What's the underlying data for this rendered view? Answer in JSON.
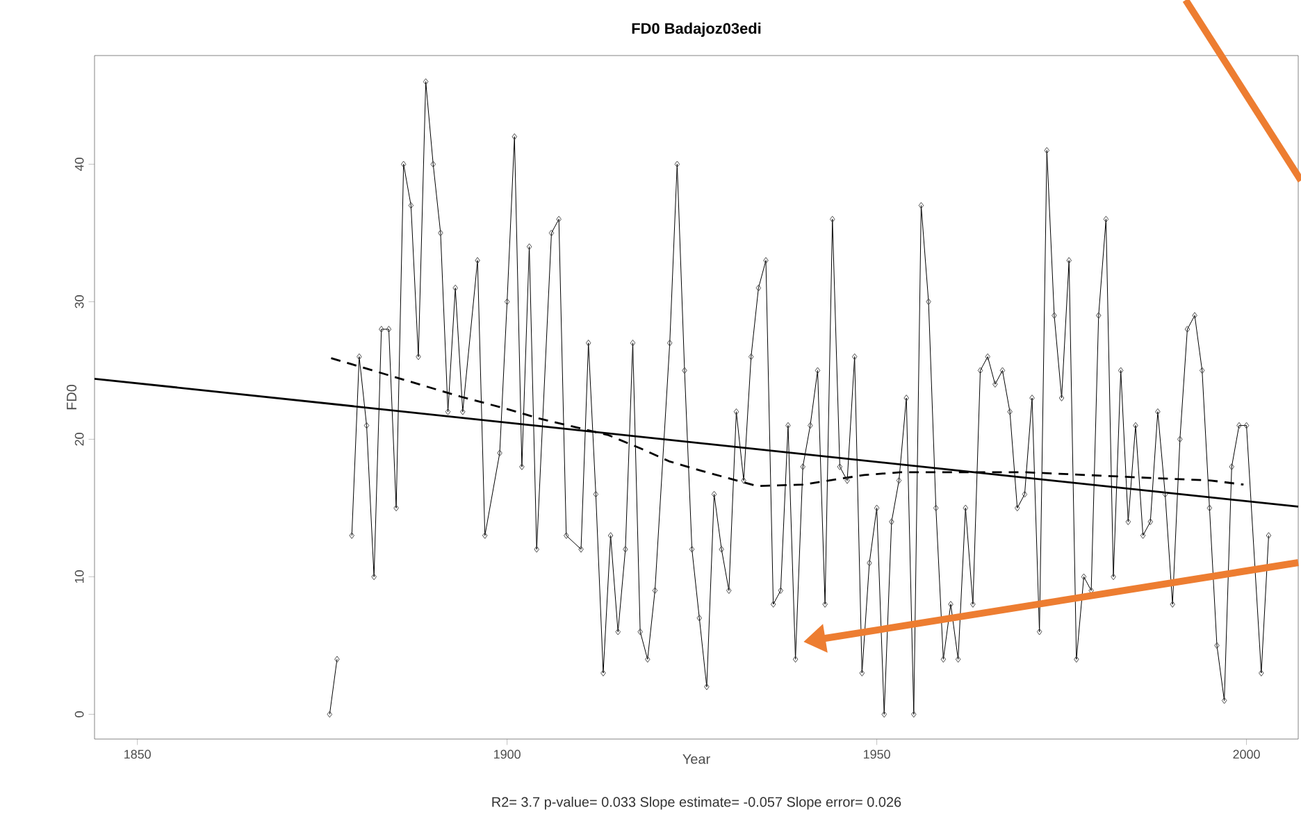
{
  "chart_data": {
    "type": "line",
    "title": "FD0   Badajoz03edi",
    "xlabel": "Year",
    "ylabel": "FD0",
    "annotations": [
      "R2= 3.7  p-value= 0.033  Slope estimate= -0.057  Slope error= 0.026"
    ],
    "xlim": [
      1844.2,
      2007.0
    ],
    "ylim": [
      -1.8,
      47.9
    ],
    "xticks": [
      1850,
      1900,
      1950,
      2000
    ],
    "yticks": [
      0,
      10,
      20,
      30,
      40
    ],
    "grid": false,
    "series": [
      {
        "color": "#000000",
        "marker": "diamond",
        "line_style": "solid",
        "x": [
          1876,
          1877,
          1878,
          1879,
          1880,
          1881,
          1882,
          1883,
          1884,
          1885,
          1886,
          1887,
          1888,
          1889,
          1890,
          1891,
          1892,
          1893,
          1894,
          1896,
          1897,
          1899,
          1900,
          1901,
          1902,
          1903,
          1904,
          1906,
          1907,
          1908,
          1910,
          1911,
          1912,
          1913,
          1914,
          1915,
          1916,
          1917,
          1918,
          1919,
          1920,
          1922,
          1923,
          1924,
          1925,
          1926,
          1927,
          1928,
          1929,
          1930,
          1931,
          1932,
          1933,
          1934,
          1935,
          1936,
          1937,
          1938,
          1939,
          1940,
          1941,
          1942,
          1943,
          1944,
          1945,
          1946,
          1947,
          1948,
          1949,
          1950,
          1951,
          1952,
          1953,
          1954,
          1955,
          1956,
          1957,
          1958,
          1959,
          1960,
          1961,
          1962,
          1963,
          1964,
          1965,
          1966,
          1967,
          1968,
          1969,
          1970,
          1971,
          1972,
          1973,
          1974,
          1975,
          1976,
          1977,
          1978,
          1979,
          1980,
          1981,
          1982,
          1983,
          1984,
          1985,
          1986,
          1987,
          1988,
          1989,
          1990,
          1991,
          1992,
          1993,
          1994,
          1995,
          1996,
          1997,
          1998,
          1999,
          2000,
          2002,
          2003
        ],
        "values": [
          0,
          4,
          null,
          13,
          26,
          21,
          10,
          28,
          28,
          15,
          40,
          37,
          26,
          46,
          40,
          35,
          22,
          31,
          22,
          33,
          13,
          19,
          30,
          42,
          18,
          34,
          12,
          35,
          36,
          13,
          12,
          27,
          16,
          3,
          13,
          6,
          12,
          27,
          6,
          4,
          9,
          27,
          40,
          25,
          12,
          7,
          2,
          16,
          12,
          9,
          22,
          17,
          26,
          31,
          33,
          8,
          9,
          21,
          4,
          18,
          21,
          25,
          8,
          36,
          18,
          17,
          26,
          3,
          11,
          15,
          0,
          14,
          17,
          23,
          0,
          37,
          30,
          15,
          4,
          8,
          4,
          15,
          8,
          25,
          26,
          24,
          25,
          22,
          15,
          16,
          23,
          6,
          41,
          29,
          23,
          33,
          4,
          10,
          9,
          29,
          36,
          10,
          25,
          14,
          21,
          13,
          14,
          22,
          16,
          8,
          20,
          28,
          29,
          25,
          15,
          5,
          1,
          18,
          21,
          21,
          3,
          13
        ]
      },
      {
        "color": "#000000",
        "marker": "none",
        "line_style": "solid",
        "x": [
          1844.2,
          2007.0
        ],
        "values": [
          24.4,
          15.1
        ]
      },
      {
        "color": "#000000",
        "marker": "none",
        "line_style": "dashed",
        "x": [
          1876.2,
          1893.7,
          1900,
          1904.4,
          1913.7,
          1918.2,
          1921.9,
          1926.3,
          1933.8,
          1940,
          1948.3,
          1953.2,
          1957.6,
          1965.8,
          1970.1,
          1978.3,
          1986.5,
          1995.2,
          1999.6
        ],
        "values": [
          25.9,
          23.1,
          22.2,
          21.5,
          20.3,
          19.3,
          18.4,
          17.7,
          16.6,
          16.7,
          17.4,
          17.6,
          17.6,
          17.6,
          17.6,
          17.4,
          17.2,
          17.0,
          16.7
        ]
      }
    ]
  }
}
